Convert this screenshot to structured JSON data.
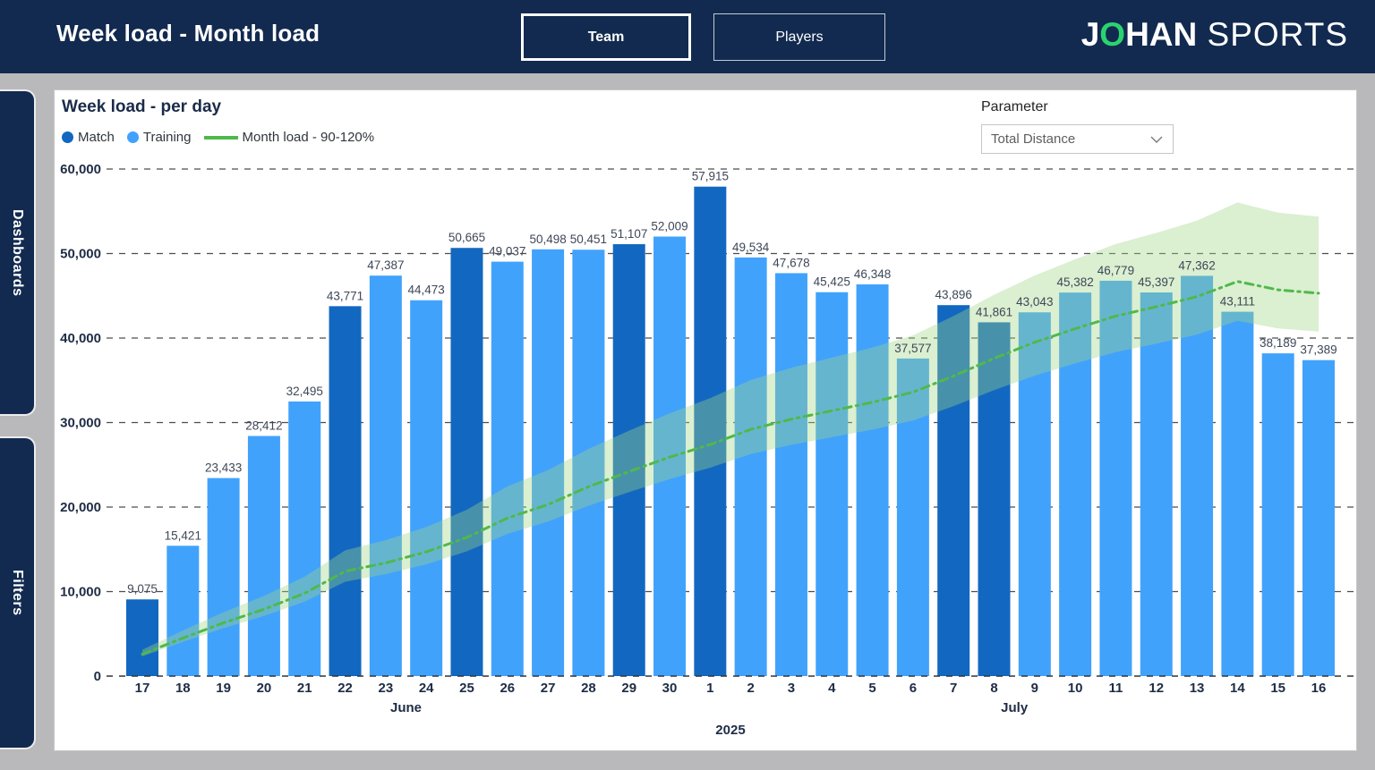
{
  "header": {
    "title": "Week load - Month load",
    "buttons": [
      {
        "label": "Team",
        "active": true
      },
      {
        "label": "Players",
        "active": false
      }
    ],
    "logo": {
      "part1": "J",
      "part2": "O",
      "part3": "HAN",
      "part4": "SPORTS"
    }
  },
  "sidebar": {
    "items": [
      {
        "label": "Dashboards"
      },
      {
        "label": "Filters"
      }
    ]
  },
  "panel": {
    "title": "Week load - per day",
    "legend": [
      {
        "label": "Match",
        "type": "dot",
        "color": "#1268c0"
      },
      {
        "label": "Training",
        "type": "dot",
        "color": "#41a2fc"
      },
      {
        "label": "Month load - 90-120%",
        "type": "line",
        "color": "#4fb94a"
      }
    ],
    "parameter": {
      "label": "Parameter",
      "value": "Total Distance"
    }
  },
  "chart_data": {
    "type": "bar",
    "title": "Week load - per day",
    "xlabel": "",
    "ylabel": "",
    "ylim": [
      0,
      60000
    ],
    "ytick_step": 10000,
    "ytick_labels": [
      "0",
      "10,000",
      "20,000",
      "30,000",
      "40,000",
      "50,000",
      "60,000"
    ],
    "grid": "dashed horizontal",
    "legend_position": "top-left",
    "categories": [
      "17",
      "18",
      "19",
      "20",
      "21",
      "22",
      "23",
      "24",
      "25",
      "26",
      "27",
      "28",
      "29",
      "30",
      "1",
      "2",
      "3",
      "4",
      "5",
      "6",
      "7",
      "8",
      "9",
      "10",
      "11",
      "12",
      "13",
      "14",
      "15",
      "16"
    ],
    "months": [
      {
        "label": "June",
        "start_index": 0,
        "end_index": 13
      },
      {
        "label": "July",
        "start_index": 14,
        "end_index": 29
      }
    ],
    "year": "2025",
    "series": [
      {
        "name": "Day load (Match = dark blue, Training = light blue)",
        "type": "bar",
        "values": [
          9075,
          15421,
          23433,
          28412,
          32495,
          43771,
          47387,
          44473,
          50665,
          49037,
          50498,
          50451,
          51107,
          52009,
          57915,
          49534,
          47678,
          45425,
          46348,
          37577,
          43896,
          41861,
          43043,
          45382,
          46779,
          45397,
          47362,
          43111,
          38189,
          37389
        ],
        "is_match": [
          true,
          false,
          false,
          false,
          false,
          true,
          false,
          false,
          true,
          false,
          false,
          false,
          true,
          false,
          true,
          false,
          false,
          false,
          false,
          false,
          true,
          true,
          false,
          false,
          false,
          false,
          false,
          false,
          false,
          false
        ]
      },
      {
        "name": "Month load - 90-120%",
        "type": "line",
        "values": [
          2600,
          4500,
          6300,
          7900,
          9800,
          12400,
          13400,
          14700,
          16400,
          18700,
          20300,
          22400,
          24200,
          25900,
          27400,
          29200,
          30400,
          31400,
          32400,
          33600,
          35500,
          37600,
          39500,
          41100,
          42600,
          43700,
          44900,
          46700,
          45700,
          45300
        ],
        "band_pct": [
          0.9,
          1.2
        ]
      }
    ]
  },
  "colors": {
    "navy": "#122a4f",
    "background_gray": "#b9b9bb",
    "panel_bg": "#ffffff",
    "match": "#1268c0",
    "training": "#41a2fc",
    "month_line": "#4fb94a",
    "month_band": "rgba(160,212,135,0.38)",
    "grid": "#4d4d4d",
    "axis_text": "#1e2c45",
    "value_text": "#3e4758",
    "logo_green": "#2bd36f"
  }
}
